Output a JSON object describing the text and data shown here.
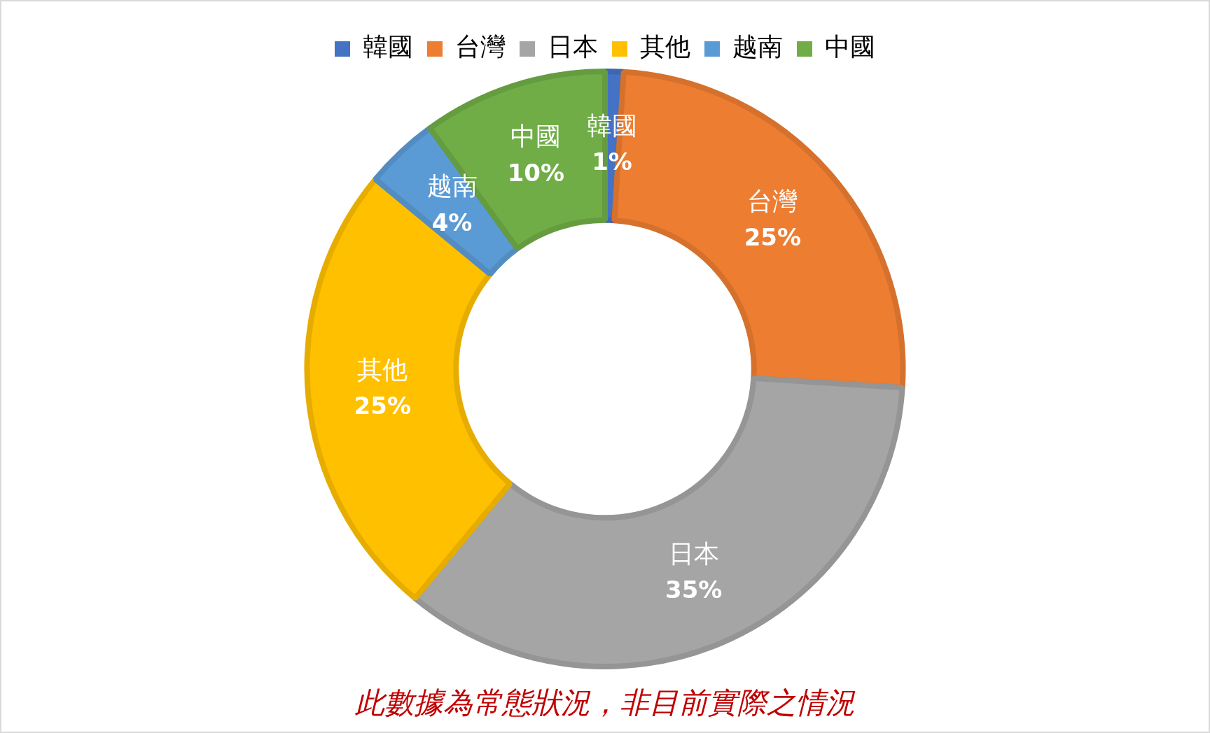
{
  "chart_data": {
    "type": "donut",
    "categories": [
      "韓國",
      "台灣",
      "日本",
      "其他",
      "越南",
      "中國"
    ],
    "values": [
      1,
      25,
      35,
      25,
      4,
      10
    ],
    "value_labels": [
      "1%",
      "25%",
      "35%",
      "25%",
      "4%",
      "10%"
    ],
    "colors": [
      "#4472c4",
      "#ed7d31",
      "#a5a5a5",
      "#ffc000",
      "#5b9bd5",
      "#70ad47"
    ],
    "legend": "top",
    "annotations": [
      "此數據為常態狀況，非目前實際之情況"
    ]
  }
}
